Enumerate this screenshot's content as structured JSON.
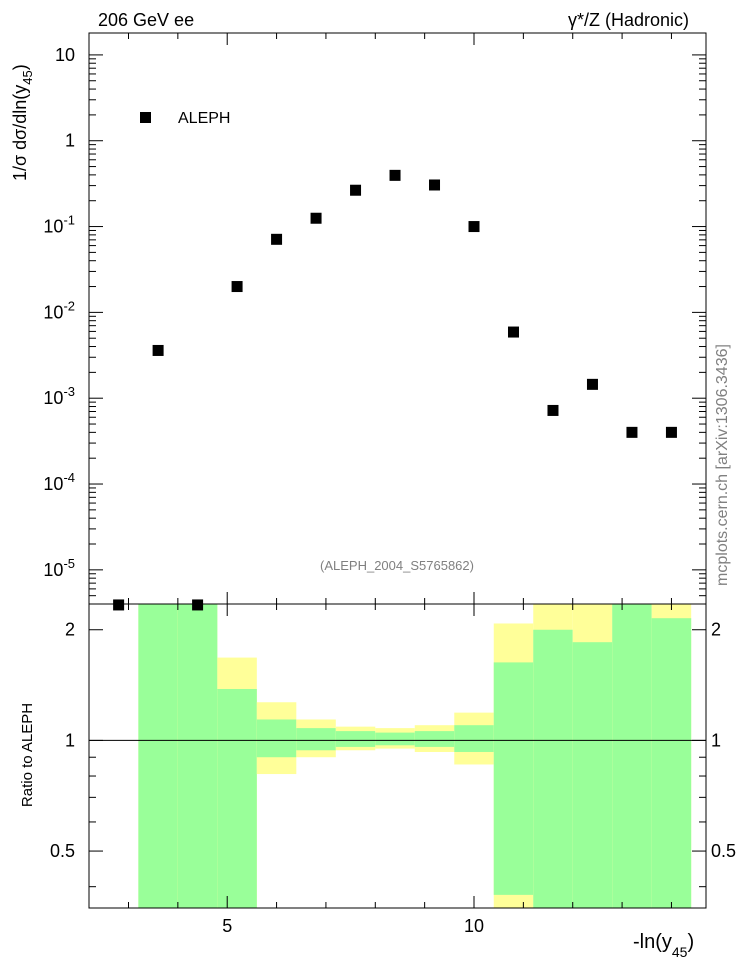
{
  "header": {
    "energy": "206 GeV ee",
    "process": "γ*/Z (Hadronic)",
    "analysis_id": "(ALEPH_2004_S5765862)",
    "watermark": "mcplots.cern.ch [arXiv:1306.3436]"
  },
  "chart_data": [
    {
      "type": "scatter",
      "scale": "log",
      "ylabel": "1/σ dσ/dln(y45)",
      "ylim": [
        4e-06,
        18
      ],
      "xlim": [
        2.2,
        14.7
      ],
      "y_ticks": [
        {
          "value": 10,
          "label": "10"
        },
        {
          "value": 1,
          "label": "1"
        },
        {
          "value": 0.1,
          "label": "10^-1"
        },
        {
          "value": 0.01,
          "label": "10^-2"
        },
        {
          "value": 0.001,
          "label": "10^-3"
        },
        {
          "value": 0.0001,
          "label": "10^-4"
        },
        {
          "value": 1e-05,
          "label": "10^-5"
        }
      ],
      "series": [
        {
          "name": "ALEPH",
          "color": "#000000",
          "points": [
            {
              "x": 2.8,
              "y": 3.9e-06
            },
            {
              "x": 3.6,
              "y": 0.0036
            },
            {
              "x": 4.4,
              "y": 3.9e-06
            },
            {
              "x": 5.2,
              "y": 0.02
            },
            {
              "x": 6.0,
              "y": 0.071
            },
            {
              "x": 6.8,
              "y": 0.125
            },
            {
              "x": 7.6,
              "y": 0.265
            },
            {
              "x": 8.4,
              "y": 0.395
            },
            {
              "x": 9.2,
              "y": 0.305
            },
            {
              "x": 10.0,
              "y": 0.1
            },
            {
              "x": 10.8,
              "y": 0.0059
            },
            {
              "x": 11.6,
              "y": 0.00072
            },
            {
              "x": 12.4,
              "y": 0.00145
            },
            {
              "x": 13.2,
              "y": 0.0004
            },
            {
              "x": 14.0,
              "y": 0.0004
            }
          ]
        }
      ],
      "legend_position": "top-left"
    },
    {
      "type": "area",
      "scale": "log",
      "ylabel": "Ratio to ALEPH",
      "xlabel": "-ln(y45)",
      "ylim": [
        0.35,
        2.35
      ],
      "xlim": [
        2.2,
        14.7
      ],
      "x_ticks": [
        {
          "value": 5,
          "label": "5"
        },
        {
          "value": 10,
          "label": "10"
        }
      ],
      "y_ticks": [
        {
          "value": 0.5,
          "label": "0.5"
        },
        {
          "value": 1,
          "label": "1"
        },
        {
          "value": 2,
          "label": "2"
        }
      ],
      "reference_line": 1,
      "bands": [
        {
          "x0": 3.2,
          "x1": 4.0,
          "total": [
            0.35,
            2.35
          ],
          "stat": [
            0.35,
            2.35
          ]
        },
        {
          "x0": 4.0,
          "x1": 4.8,
          "total": [
            0.35,
            2.35
          ],
          "stat": [
            0.35,
            2.35
          ]
        },
        {
          "x0": 4.8,
          "x1": 5.6,
          "total": [
            0.35,
            1.68
          ],
          "stat": [
            0.35,
            1.38
          ]
        },
        {
          "x0": 5.6,
          "x1": 6.4,
          "total": [
            0.81,
            1.27
          ],
          "stat": [
            0.9,
            1.14
          ]
        },
        {
          "x0": 6.4,
          "x1": 7.2,
          "total": [
            0.9,
            1.14
          ],
          "stat": [
            0.94,
            1.08
          ]
        },
        {
          "x0": 7.2,
          "x1": 8.0,
          "total": [
            0.94,
            1.09
          ],
          "stat": [
            0.96,
            1.06
          ]
        },
        {
          "x0": 8.0,
          "x1": 8.8,
          "total": [
            0.95,
            1.08
          ],
          "stat": [
            0.97,
            1.05
          ]
        },
        {
          "x0": 8.8,
          "x1": 9.6,
          "total": [
            0.93,
            1.1
          ],
          "stat": [
            0.96,
            1.06
          ]
        },
        {
          "x0": 9.6,
          "x1": 10.4,
          "total": [
            0.86,
            1.19
          ],
          "stat": [
            0.93,
            1.1
          ]
        },
        {
          "x0": 10.4,
          "x1": 11.2,
          "total": [
            0.35,
            2.08
          ],
          "stat": [
            0.38,
            1.63
          ]
        },
        {
          "x0": 11.2,
          "x1": 12.0,
          "total": [
            0.35,
            2.35
          ],
          "stat": [
            0.35,
            2.0
          ]
        },
        {
          "x0": 12.0,
          "x1": 12.8,
          "total": [
            0.35,
            2.35
          ],
          "stat": [
            0.35,
            1.85
          ]
        },
        {
          "x0": 12.8,
          "x1": 13.6,
          "total": [
            0.35,
            2.35
          ],
          "stat": [
            0.35,
            2.35
          ]
        },
        {
          "x0": 13.6,
          "x1": 14.4,
          "total": [
            0.35,
            2.35
          ],
          "stat": [
            0.35,
            2.15
          ]
        }
      ],
      "colors": {
        "total": "#ffff99",
        "stat": "#99ff99",
        "line": "#000000"
      }
    }
  ]
}
